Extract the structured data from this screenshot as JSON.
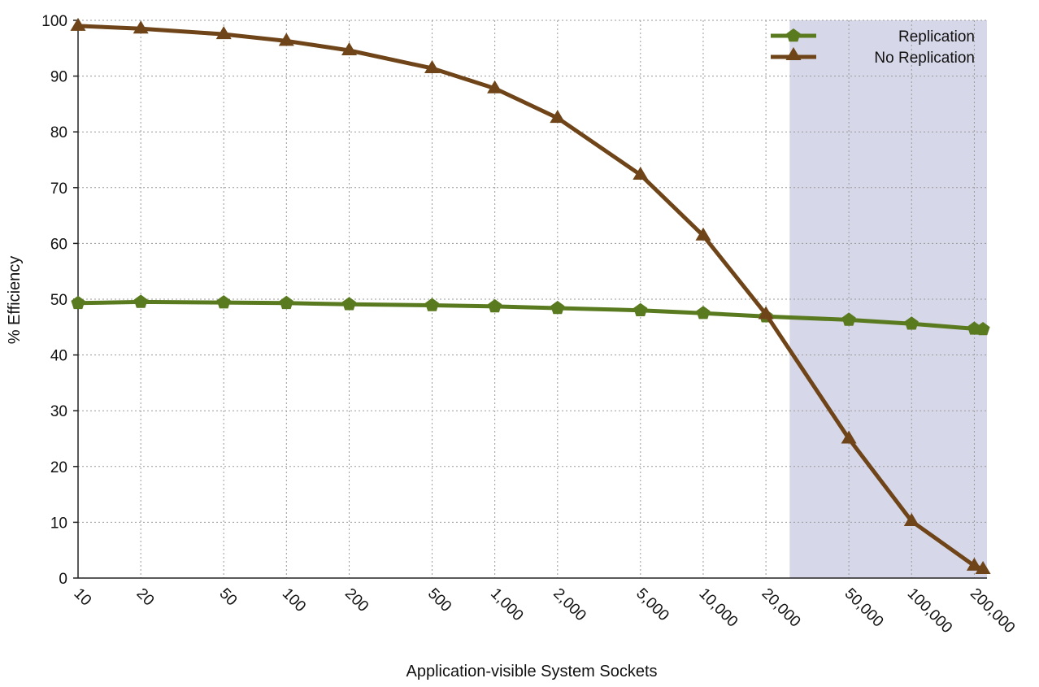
{
  "chart_data": {
    "type": "line",
    "x": [
      10,
      20,
      50,
      100,
      200,
      500,
      1000,
      2000,
      5000,
      10000,
      20000,
      50000,
      100000,
      200000
    ],
    "x_tick_labels": [
      "10",
      "20",
      "50",
      "100",
      "200",
      "500",
      "1,000",
      "2,000",
      "5,000",
      "10,000",
      "20,000",
      "50,000",
      "100,000",
      "200,000"
    ],
    "x_scale": "log",
    "xlim": [
      10,
      230000
    ],
    "ylim": [
      0,
      100
    ],
    "y_ticks": [
      0,
      10,
      20,
      30,
      40,
      50,
      60,
      70,
      80,
      90,
      100
    ],
    "y_tick_labels": [
      "0",
      "10",
      "20",
      "30",
      "40",
      "50",
      "60",
      "70",
      "80",
      "90",
      "100"
    ],
    "xlabel": "Application-visible System Sockets",
    "ylabel": "% Efficiency",
    "grid": true,
    "legend_position": "top-right",
    "highlight_region": {
      "x_from": 26000,
      "x_to": 230000,
      "color": "#d6d7e8"
    },
    "series": [
      {
        "name": "Replication",
        "color": "#5a7a1f",
        "marker": "pentagon",
        "x": [
          10,
          20,
          50,
          100,
          200,
          500,
          1000,
          2000,
          5000,
          10000,
          20000,
          50000,
          100000,
          200000,
          220000
        ],
        "values": [
          49.3,
          49.5,
          49.4,
          49.3,
          49.1,
          48.9,
          48.7,
          48.4,
          48.0,
          47.5,
          46.9,
          46.3,
          45.6,
          44.7,
          44.6
        ]
      },
      {
        "name": "No Replication",
        "color": "#6e4418",
        "marker": "triangle",
        "x": [
          10,
          20,
          50,
          100,
          200,
          500,
          1000,
          2000,
          5000,
          10000,
          20000,
          50000,
          100000,
          200000,
          220000
        ],
        "values": [
          99.0,
          98.5,
          97.5,
          96.3,
          94.6,
          91.4,
          87.8,
          82.5,
          72.3,
          61.4,
          47.3,
          25.0,
          10.2,
          2.2,
          1.6
        ]
      }
    ]
  }
}
